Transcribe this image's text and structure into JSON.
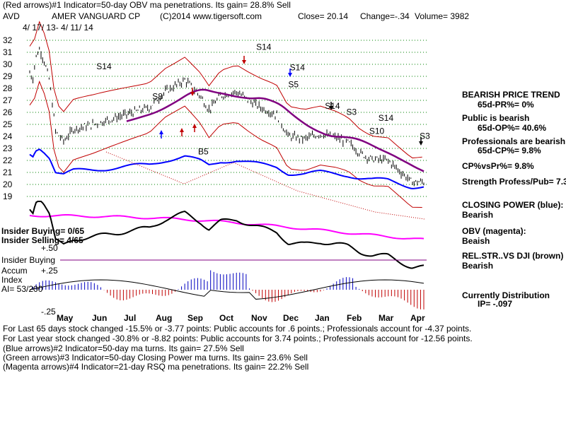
{
  "header": {
    "line1": "(Red arrows)#1 Indicator=50-day OBV ma penetrations. Its gain= 28.8% Sell",
    "ticker": "AVD",
    "company": "AMER VANGUARD CP",
    "copyright": "(C)2014 www.tigersoft.com",
    "close": "Close=  20.14",
    "change": "Change=-.34",
    "volume": "Volume= 3982",
    "date_range": "4/ 17/ 13- 4/ 11/ 14"
  },
  "right_panel": {
    "trend_title": "BEARISH PRICE TREND",
    "trend_pr": "65d-PR%= 0%",
    "public_title": "Public is bearish",
    "public_op": "65d-OP%= 40.6%",
    "pros_title": "Professionals are bearish",
    "pros_cp": "65d-CP%= 9.8%",
    "cp_vs_pr": "CP%vsPr%=  9.8%",
    "strength": "Strength Profess/Pub= 7.3",
    "closing_power_title": "CLOSING POWER (blue):",
    "closing_power_value": "Bearish",
    "obv_title": "OBV (magenta):",
    "obv_value": "Beaish",
    "relstr_title": "REL.STR..VS DJI (brown)",
    "relstr_value": "Bearish",
    "distribution_title": "Currently Distribution",
    "distribution_ip": "IP= -.097"
  },
  "left_panel": {
    "insider_buying": "Insider Buying= 0/65",
    "insider_selling": "Insider Selling= 4/65",
    "plus50": "+.50",
    "insider_buying_label": "Insider Buying",
    "accum": "Accum",
    "plus25": "+.25",
    "index": "Index",
    "ai": "AI= 53/200",
    "minus25": "-.25"
  },
  "footer": {
    "line1": "For Last 65 days stock changed -15.5% or -3.77 points:  Public accounts for  .6 points.;  Professionals account for -4.37 points.",
    "line2": "For Last year stock changed -30.8% or -8.82 points:  Public accounts for  3.74 points.;  Professionals account for -12.56 points.",
    "line3": "(Blue arrows)#2 Indicator=50-day ma turns. Its gain= 27.5% Sell",
    "line4": "(Green arrows)#3 Indicator=50-day Closing Power ma turns. Its gain= 23.6% Sell",
    "line5": "(Magenta arrows)#4 Indicator=21-day RSQ ma penetrations. Its gain= 22.2% Sell"
  },
  "chart_data": {
    "type": "line",
    "ylim": [
      19,
      32
    ],
    "y_ticks": [
      "32",
      "31",
      "30",
      "29",
      "28",
      "27",
      "26",
      "25",
      "24",
      "23",
      "22",
      "21",
      "20",
      "19"
    ],
    "x_ticks": [
      "May",
      "Jun",
      "Jul",
      "Aug",
      "Sep",
      "Oct",
      "Nov",
      "Dec",
      "Jan",
      "Feb",
      "Mar",
      "Apr"
    ],
    "signal_labels": [
      {
        "text": "S14",
        "x": 1.72,
        "y": 29.6
      },
      {
        "text": "S8",
        "x": 3.55,
        "y": 27.1
      },
      {
        "text": "B5",
        "x": 5.05,
        "y": 22.5
      },
      {
        "text": "S14",
        "x": 6.95,
        "y": 31.2
      },
      {
        "text": "S14",
        "x": 8.05,
        "y": 29.5
      },
      {
        "text": "S5",
        "x": 8.0,
        "y": 28.1
      },
      {
        "text": "S14",
        "x": 9.2,
        "y": 26.3
      },
      {
        "text": "S3",
        "x": 9.9,
        "y": 25.8
      },
      {
        "text": "S14",
        "x": 10.95,
        "y": 25.3
      },
      {
        "text": "S10",
        "x": 10.65,
        "y": 24.2
      },
      {
        "text": "S3",
        "x": 12.3,
        "y": 23.8
      }
    ],
    "colors": {
      "price": "#000000",
      "band": "#c00000",
      "ma": "#800080",
      "closing_power": "#0000ff",
      "obv": "#ff00ff",
      "rel_str": "#000000",
      "grid": "#008000",
      "accum_pos": "#0000c0",
      "accum_neg": "#c00000"
    }
  }
}
